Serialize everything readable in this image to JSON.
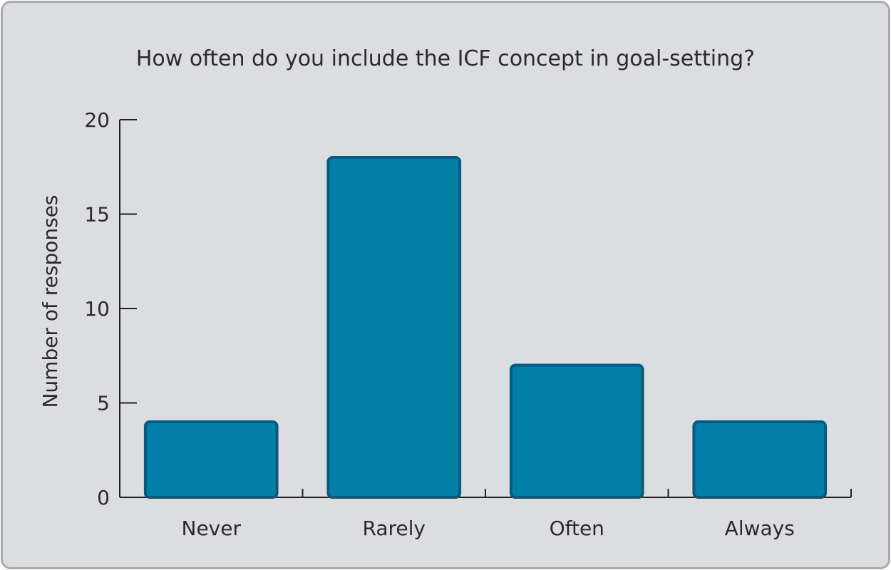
{
  "chart_data": {
    "type": "bar",
    "title": "How often do you include the ICF concept in goal-setting?",
    "xlabel": "",
    "ylabel": "Number of responses",
    "categories": [
      "Never",
      "Rarely",
      "Often",
      "Always"
    ],
    "values": [
      4,
      18,
      7,
      4
    ],
    "ylim": [
      0,
      20
    ],
    "yticks": [
      0,
      5,
      10,
      15,
      20
    ],
    "grid": false,
    "legend": "none",
    "colors": {
      "bar_fill": "#0080a6",
      "bar_stroke": "#0b5a7e",
      "background": "#dcdde0"
    }
  }
}
